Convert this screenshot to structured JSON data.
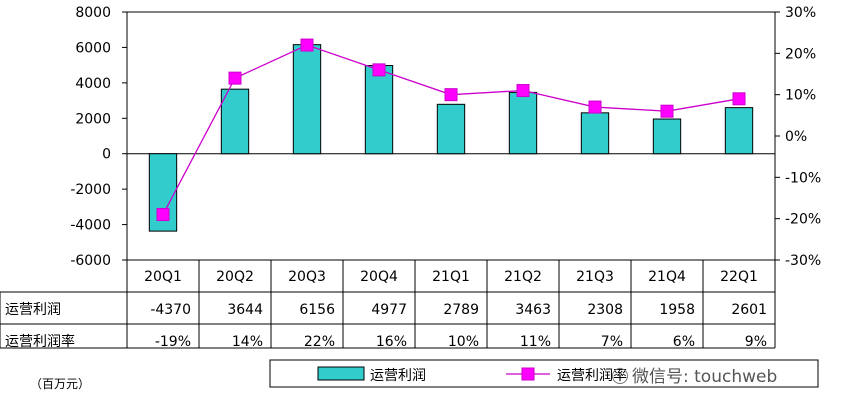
{
  "chart_data": {
    "type": "bar+line",
    "categories": [
      "20Q1",
      "20Q2",
      "20Q3",
      "20Q4",
      "21Q1",
      "21Q2",
      "21Q3",
      "21Q4",
      "22Q1"
    ],
    "series": [
      {
        "name": "运营利润",
        "type": "bar",
        "axis": "left",
        "values": [
          -4370,
          3644,
          6156,
          4977,
          2789,
          3463,
          2308,
          1958,
          2601
        ],
        "color": "#33CCCC"
      },
      {
        "name": "运营利润率",
        "type": "line",
        "axis": "right",
        "values": [
          -19,
          14,
          22,
          16,
          10,
          11,
          7,
          6,
          9
        ],
        "color": "#CC00CC"
      }
    ],
    "left_axis": {
      "min": -6000,
      "max": 8000,
      "step": 2000,
      "ticks": [
        "-6000",
        "-4000",
        "-2000",
        "0",
        "2000",
        "4000",
        "6000",
        "8000"
      ]
    },
    "right_axis": {
      "min": -30,
      "max": 30,
      "step": 10,
      "ticks": [
        "-30%",
        "-20%",
        "-10%",
        "0%",
        "10%",
        "20%",
        "30%"
      ]
    },
    "table": {
      "row_labels": [
        "运营利润",
        "运营利润率"
      ],
      "rows": [
        [
          "-4370",
          "3644",
          "6156",
          "4977",
          "2789",
          "3463",
          "2308",
          "1958",
          "2601"
        ],
        [
          "-19%",
          "14%",
          "22%",
          "16%",
          "10%",
          "11%",
          "7%",
          "6%",
          "9%"
        ]
      ]
    },
    "legend": [
      "运营利润",
      "运营利润率"
    ],
    "unit": "（百万元）"
  },
  "watermark": "微信号: touchweb"
}
